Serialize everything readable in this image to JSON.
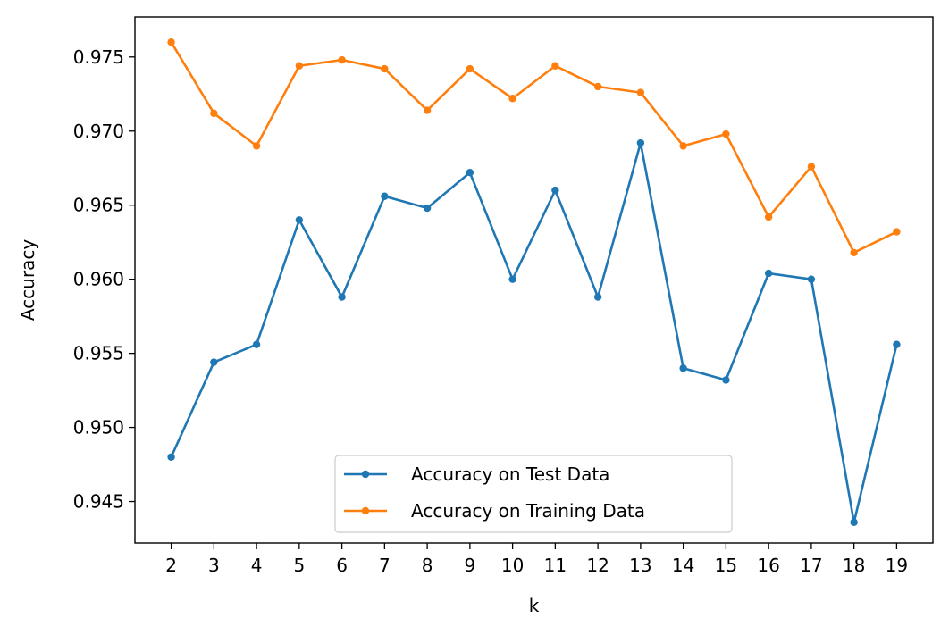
{
  "chart_data": {
    "type": "line",
    "title": "",
    "xlabel": "k",
    "ylabel": "Accuracy",
    "x": [
      2,
      3,
      4,
      5,
      6,
      7,
      8,
      9,
      10,
      11,
      12,
      13,
      14,
      15,
      16,
      17,
      18,
      19
    ],
    "x_ticks": [
      "2",
      "3",
      "4",
      "5",
      "6",
      "7",
      "8",
      "9",
      "10",
      "11",
      "12",
      "13",
      "14",
      "15",
      "16",
      "17",
      "18",
      "19"
    ],
    "y_ticks": [
      "0.945",
      "0.950",
      "0.955",
      "0.960",
      "0.965",
      "0.970",
      "0.975"
    ],
    "xlim": [
      1.15,
      19.85
    ],
    "ylim": [
      0.9422,
      0.9777
    ],
    "grid": false,
    "legend_position": "lower center",
    "series": [
      {
        "name": "Accuracy on Test Data",
        "color": "#1f77b4",
        "marker": "dot",
        "values": [
          0.948,
          0.9544,
          0.9556,
          0.964,
          0.9588,
          0.9656,
          0.9648,
          0.9672,
          0.96,
          0.966,
          0.9588,
          0.9692,
          0.954,
          0.9532,
          0.9604,
          0.96,
          0.9436,
          0.9556
        ]
      },
      {
        "name": "Accuracy on Training Data",
        "color": "#ff7f0e",
        "marker": "dot",
        "values": [
          0.976,
          0.9712,
          0.969,
          0.9744,
          0.9748,
          0.9742,
          0.9714,
          0.9742,
          0.9722,
          0.9744,
          0.973,
          0.9726,
          0.969,
          0.9698,
          0.9642,
          0.9676,
          0.9618,
          0.9632
        ]
      }
    ]
  }
}
